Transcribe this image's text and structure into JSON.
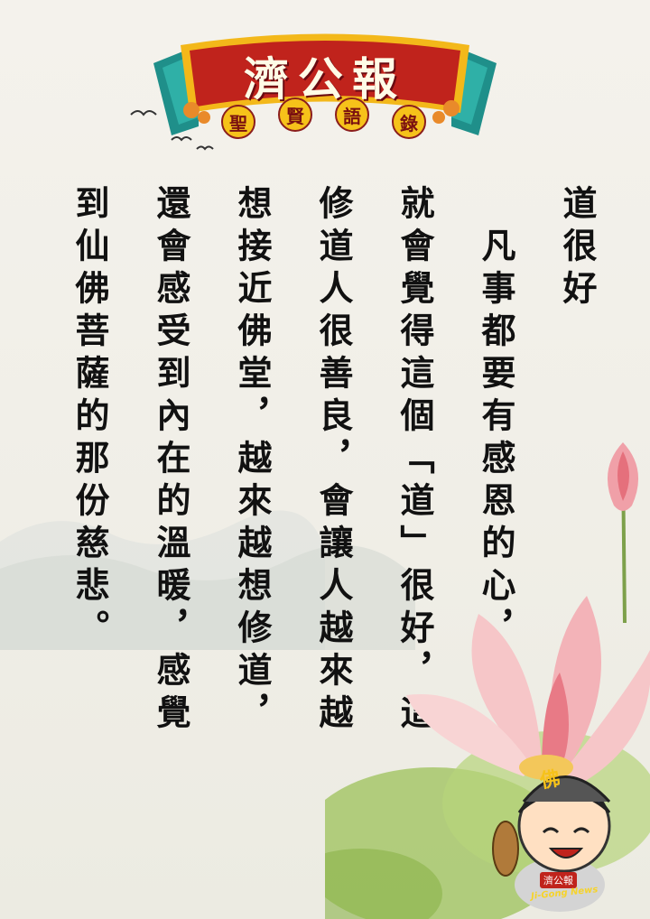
{
  "header": {
    "title": "濟公報",
    "subtitle_chars": [
      "聖",
      "賢",
      "語",
      "錄"
    ]
  },
  "content": {
    "columns": [
      "道很好",
      "　凡事都要有感恩的心，",
      "就會覺得這個「道」很好，這",
      "修道人很善良，會讓人越來越",
      "想接近佛堂，越來越想修道，",
      "還會感受到內在的溫暖，感覺",
      "到仙佛菩薩的那份慈悲。"
    ]
  },
  "mascot": {
    "badge_char": "佛",
    "label": "濟公報",
    "news": "Ji-Gong News"
  },
  "colors": {
    "banner_red": "#c0231c",
    "banner_teal": "#1f8f8a",
    "gold": "#f6c21a",
    "text": "#111111"
  }
}
